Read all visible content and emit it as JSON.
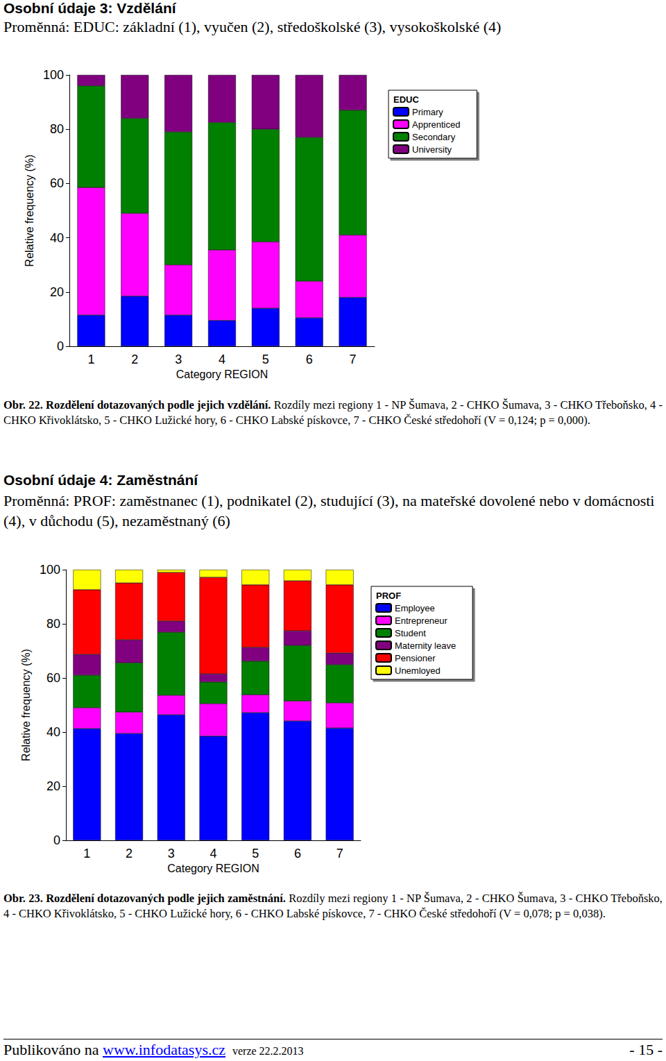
{
  "document": {
    "sections": [
      {
        "heading": "Osobní údaje 3: Vzdělání",
        "subheading": "Proměnná: EDUC: základní (1), vyučen (2), středoškolské (3), vysokoškolské (4)",
        "caption_bold": "Obr. 22. Rozdělení dotazovaných podle jejich vzdělání.",
        "caption": "Rozdíly mezi regiony 1 - NP Šumava, 2 - CHKO Šumava, 3 - CHKO Třeboňsko, 4 - CHKO Křivoklátsko, 5 - CHKO Lužické hory, 6 - CHKO Labské pískovce, 7 - CHKO České středohoří (V = 0,124; p = 0,000)."
      },
      {
        "heading": "Osobní údaje 4: Zaměstnání",
        "subheading": "Proměnná: PROF: zaměstnanec (1), podnikatel (2), studující (3), na mateřské dovolené nebo v domácnosti (4), v důchodu (5), nezaměstnaný (6)",
        "caption_bold": "Obr. 23. Rozdělení dotazovaných podle jejich zaměstnání.",
        "caption": "Rozdíly mezi regiony 1 - NP Šumava, 2 - CHKO Šumava, 3 - CHKO Třeboňsko, 4 - CHKO Křivoklátsko, 5 - CHKO Lužické hory, 6 - CHKO Labské pískovce, 7 - CHKO České středohoří (V = 0,078; p = 0,038)."
      }
    ],
    "footer": {
      "text": "Publikováno na",
      "link": "www.infodatasys.cz",
      "version": "verze 22.2.2013",
      "page": "- 15 -"
    }
  },
  "chart_data": [
    {
      "type": "bar",
      "stacked": true,
      "x_label": "Category REGION",
      "y_label": "Relative frequency (%)",
      "legend_title": "EDUC",
      "legend": "right",
      "grid": false,
      "categories": [
        "1",
        "2",
        "3",
        "4",
        "5",
        "6",
        "7"
      ],
      "ylim": [
        0,
        100
      ],
      "yticks": [
        0,
        20,
        40,
        60,
        80,
        100
      ],
      "series": [
        {
          "name": "Primary",
          "color": "#0000ff",
          "values": [
            11.5,
            18.5,
            11.5,
            9.5,
            14,
            10.5,
            18
          ]
        },
        {
          "name": "Apprenticed",
          "color": "#ff00ff",
          "values": [
            47,
            30.5,
            18.5,
            26,
            24.5,
            13.5,
            23
          ]
        },
        {
          "name": "Secondary",
          "color": "#008000",
          "values": [
            37.5,
            35,
            49,
            47,
            41.5,
            53,
            46
          ]
        },
        {
          "name": "University",
          "color": "#800080",
          "values": [
            4,
            16,
            21,
            17.5,
            20,
            23,
            13
          ]
        }
      ]
    },
    {
      "type": "bar",
      "stacked": true,
      "x_label": "Category REGION",
      "y_label": "Relative frequency (%)",
      "legend_title": "PROF",
      "legend": "right",
      "grid": false,
      "categories": [
        "1",
        "2",
        "3",
        "4",
        "5",
        "6",
        "7"
      ],
      "ylim": [
        0,
        100
      ],
      "yticks": [
        0,
        20,
        40,
        60,
        80,
        100
      ],
      "series": [
        {
          "name": "Employee",
          "color": "#0000ff",
          "values": [
            41.3,
            39.5,
            46.4,
            38.5,
            47.2,
            44.1,
            41.5
          ]
        },
        {
          "name": "Entrepreneur",
          "color": "#ff00ff",
          "values": [
            7.7,
            7.9,
            7.2,
            12,
            6.6,
            7.4,
            9.3
          ]
        },
        {
          "name": "Student",
          "color": "#008000",
          "values": [
            12,
            18.2,
            23.3,
            8,
            12.4,
            20.5,
            14.1
          ]
        },
        {
          "name": "Maternity leave",
          "color": "#800080",
          "values": [
            7.7,
            8.5,
            4.1,
            3,
            5.1,
            5.4,
            4.3
          ]
        },
        {
          "name": "Pensioner",
          "color": "#ff0000",
          "values": [
            23.9,
            21,
            18,
            35.7,
            23.1,
            18.5,
            25.2
          ]
        },
        {
          "name": "Unemloyed",
          "color": "#ffff00",
          "values": [
            7.4,
            4.9,
            1,
            2.8,
            5.6,
            4.1,
            5.6
          ]
        }
      ]
    }
  ]
}
